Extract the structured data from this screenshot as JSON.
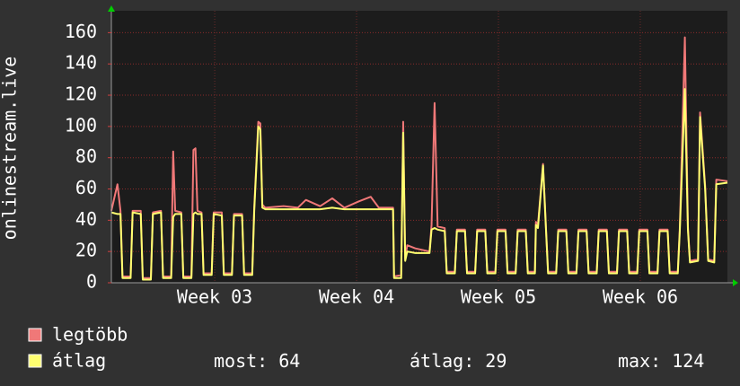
{
  "chart_data": {
    "type": "line",
    "ylabel": "onlinestream.live",
    "x": [
      0,
      0.3,
      0.45,
      0.55,
      0.95,
      1.05,
      1.45,
      1.55,
      1.95,
      2.05,
      2.45,
      2.55,
      2.95,
      3.05,
      3.15,
      3.45,
      3.55,
      3.95,
      4.05,
      4.15,
      4.25,
      4.45,
      4.55,
      4.95,
      5.05,
      5.45,
      5.55,
      5.95,
      6.05,
      6.45,
      6.55,
      6.95,
      7.05,
      7.25,
      7.35,
      7.45,
      7.6,
      8.5,
      9.2,
      9.6,
      10.3,
      10.9,
      11.5,
      12.2,
      12.8,
      13.2,
      13.9,
      13.95,
      14.3,
      14.4,
      14.5,
      14.6,
      15,
      15.7,
      15.8,
      15.95,
      16.1,
      16.45,
      16.55,
      16.95,
      17.05,
      17.45,
      17.55,
      17.95,
      18.05,
      18.45,
      18.55,
      18.95,
      19.05,
      19.45,
      19.55,
      19.95,
      20.05,
      20.45,
      20.55,
      20.9,
      20.95,
      21.05,
      21.3,
      21.45,
      21.55,
      21.95,
      22.05,
      22.45,
      22.55,
      22.95,
      23.05,
      23.45,
      23.55,
      23.95,
      24.05,
      24.45,
      24.55,
      24.95,
      25.05,
      25.45,
      25.55,
      25.95,
      26.05,
      26.45,
      26.55,
      26.95,
      27.05,
      27.45,
      27.55,
      27.95,
      28.05,
      28.3,
      28.45,
      28.55,
      28.95,
      29.05,
      29.3,
      29.45,
      29.75,
      29.85,
      30.4
    ],
    "xlim": [
      0,
      30.4
    ],
    "xticks": [
      {
        "value": 5.1,
        "label": "Week 03"
      },
      {
        "value": 12.1,
        "label": "Week 04"
      },
      {
        "value": 19.1,
        "label": "Week 05"
      },
      {
        "value": 26.1,
        "label": "Week 06"
      }
    ],
    "ylim": [
      0,
      174
    ],
    "yticks": [
      0,
      20,
      40,
      60,
      80,
      100,
      120,
      140,
      160
    ],
    "grid": true,
    "series": [
      {
        "name": "legtöbb",
        "color": "#f07878",
        "values": [
          46,
          63,
          46,
          4,
          4,
          46,
          46,
          3,
          3,
          45,
          46,
          4,
          4,
          84,
          46,
          45,
          4,
          4,
          85,
          86,
          46,
          45,
          6,
          6,
          45,
          45,
          6,
          6,
          44,
          44,
          6,
          6,
          48,
          103,
          102,
          50,
          48,
          49,
          48,
          53,
          49,
          54,
          48,
          52,
          55,
          48,
          48,
          4,
          5,
          103,
          15,
          24,
          22,
          20,
          37,
          115,
          36,
          35,
          7,
          7,
          34,
          34,
          7,
          7,
          34,
          34,
          7,
          7,
          34,
          34,
          7,
          7,
          34,
          34,
          7,
          7,
          39,
          37,
          76,
          34,
          7,
          7,
          34,
          34,
          7,
          7,
          34,
          34,
          7,
          7,
          34,
          34,
          7,
          7,
          34,
          34,
          7,
          7,
          34,
          34,
          7,
          7,
          34,
          34,
          7,
          7,
          35,
          157,
          36,
          14,
          15,
          109,
          62,
          15,
          14,
          66,
          65
        ]
      },
      {
        "name": "átlag",
        "color": "#ffff70",
        "values": [
          45,
          44,
          44,
          3,
          3,
          45,
          44,
          2,
          2,
          44,
          45,
          3,
          3,
          42,
          44,
          44,
          3,
          3,
          44,
          45,
          44,
          44,
          5,
          5,
          44,
          43,
          5,
          5,
          43,
          43,
          5,
          5,
          46,
          100,
          98,
          48,
          47,
          47,
          47,
          47,
          47,
          48,
          47,
          47,
          47,
          47,
          47,
          3,
          3,
          96,
          14,
          20,
          19,
          19,
          34,
          35,
          34,
          33,
          6,
          6,
          33,
          33,
          6,
          6,
          33,
          33,
          6,
          6,
          33,
          33,
          6,
          6,
          33,
          33,
          6,
          6,
          37,
          35,
          75,
          33,
          6,
          6,
          33,
          33,
          6,
          6,
          33,
          33,
          6,
          6,
          33,
          33,
          6,
          6,
          33,
          33,
          6,
          6,
          33,
          33,
          6,
          6,
          33,
          33,
          6,
          6,
          33,
          124,
          34,
          13,
          14,
          106,
          60,
          14,
          13,
          63,
          64
        ]
      }
    ],
    "stats": [
      {
        "label": "most:",
        "value": 64
      },
      {
        "label": "átlag:",
        "value": 29
      },
      {
        "label": "max:",
        "value": 124
      }
    ]
  }
}
